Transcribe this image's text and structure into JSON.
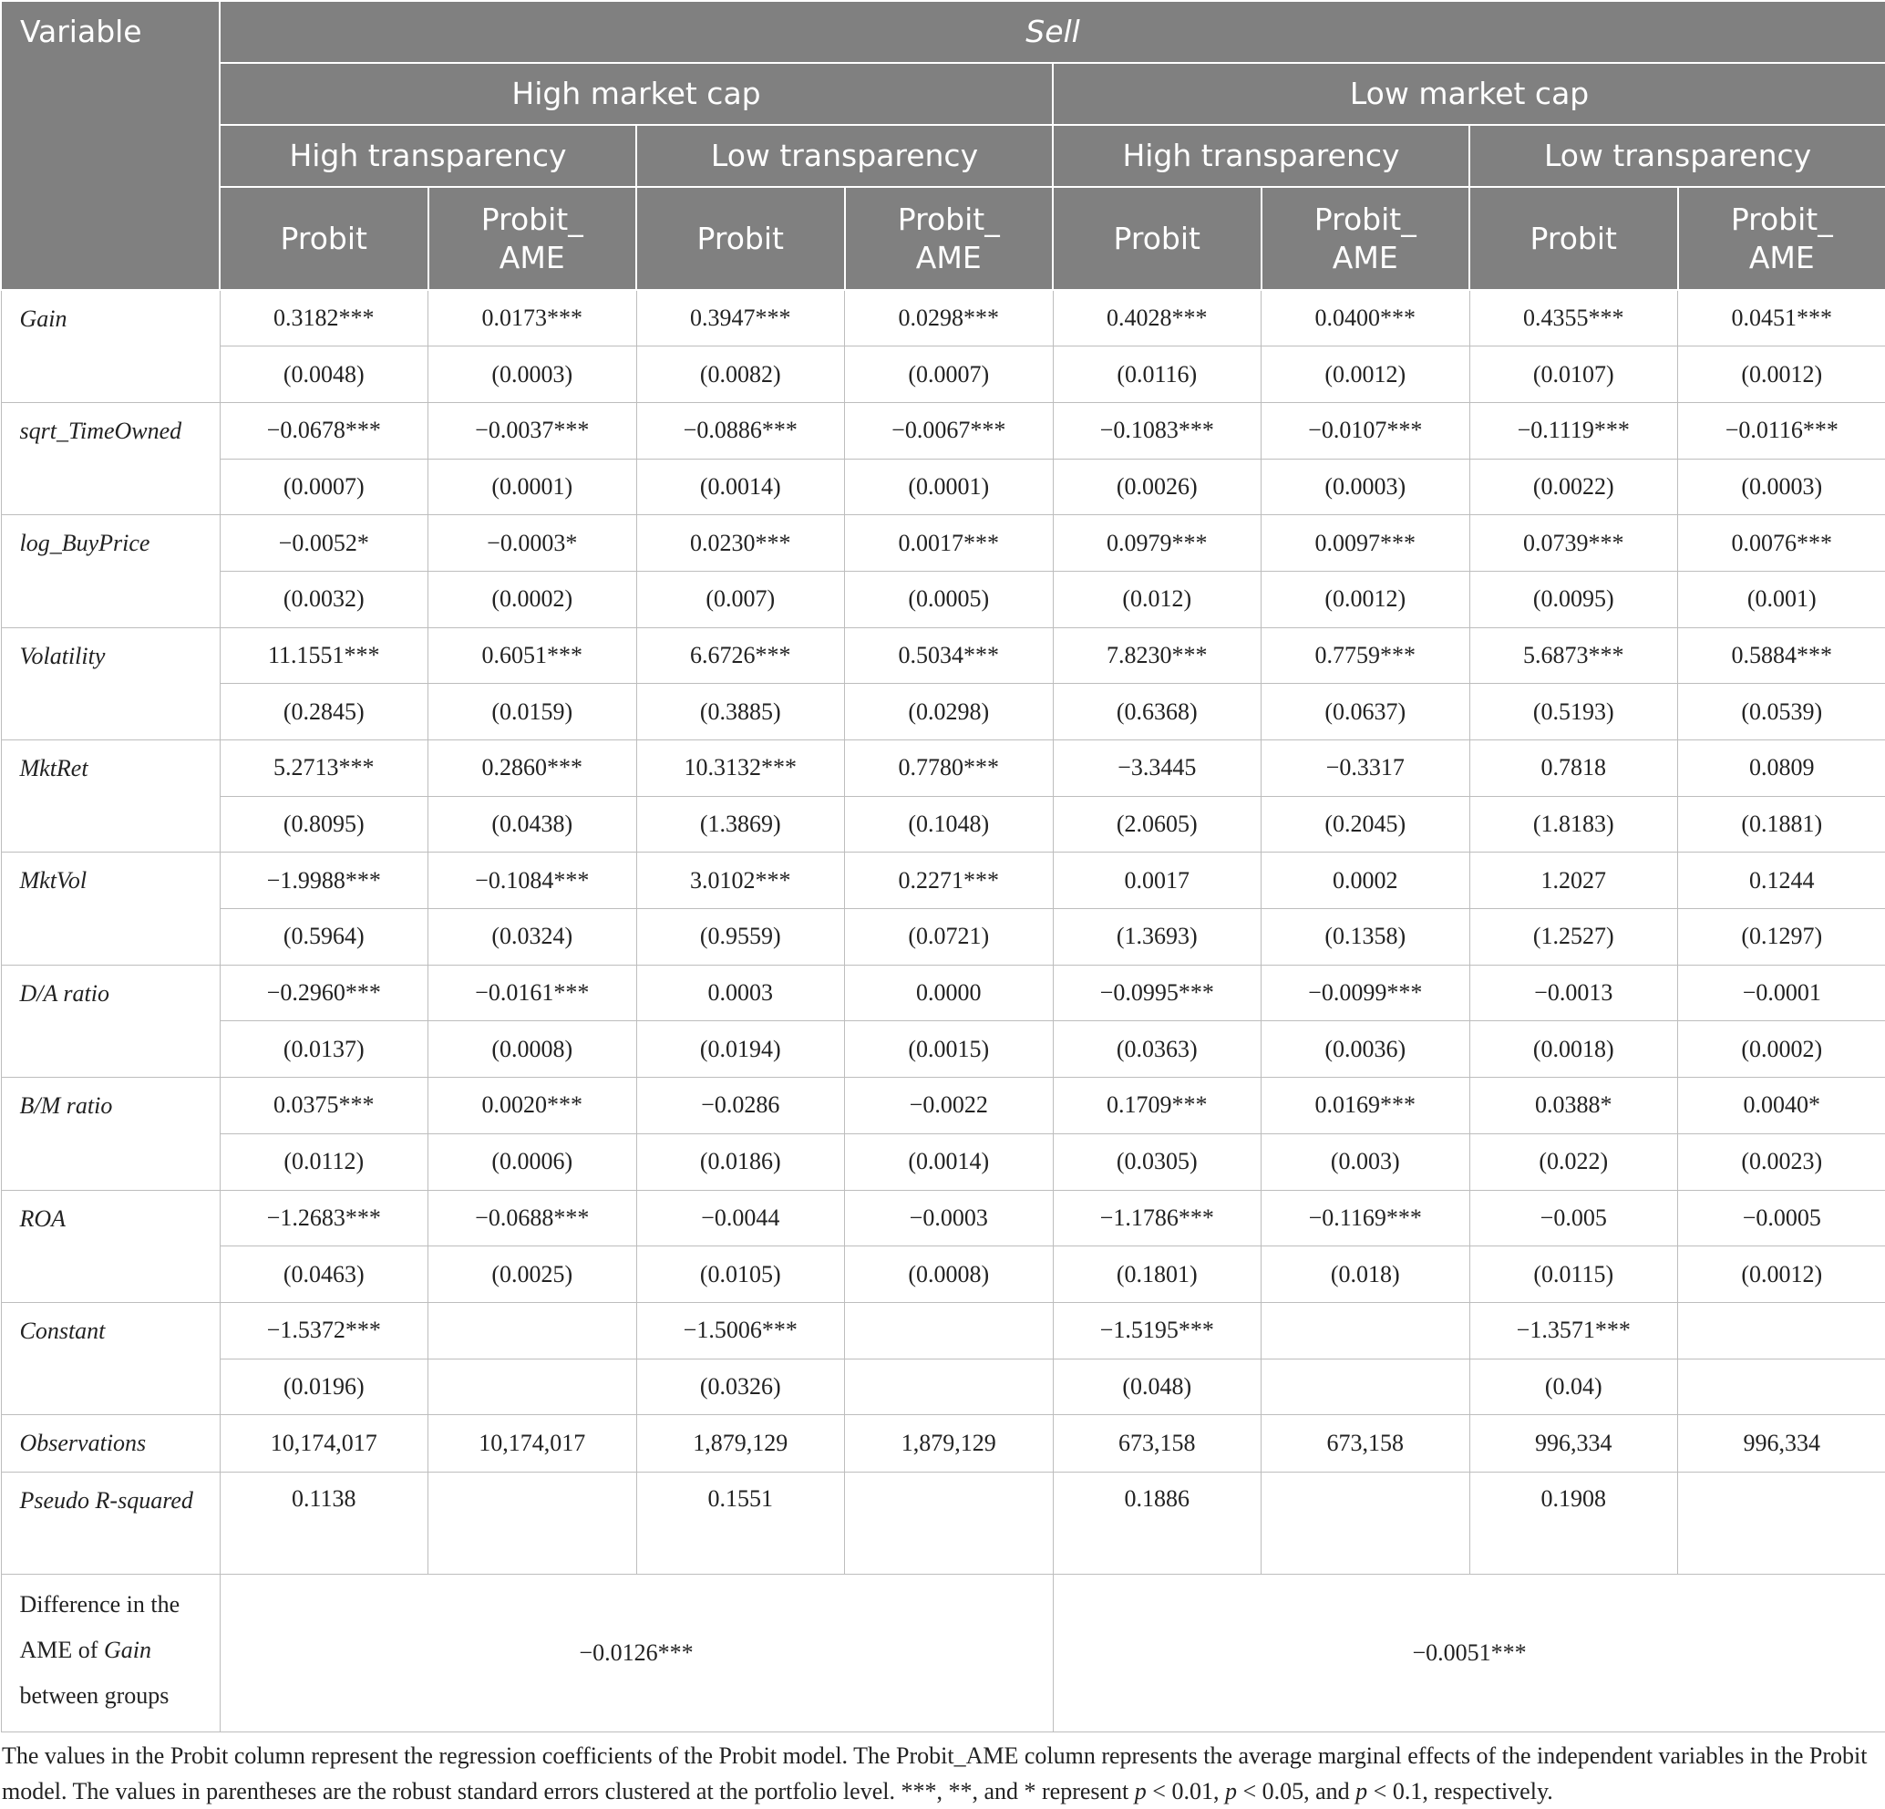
{
  "table": {
    "header": {
      "variable": "Variable",
      "sell": "Sell",
      "groups": [
        "High market cap",
        "Low market cap"
      ],
      "subgroups": [
        "High transparency",
        "Low transparency",
        "High transparency",
        "Low transparency"
      ],
      "models": [
        "Probit",
        "Probit_\nAME",
        "Probit",
        "Probit_\nAME",
        "Probit",
        "Probit_\nAME",
        "Probit",
        "Probit_\nAME"
      ]
    },
    "rows": [
      {
        "label": "Gain",
        "estimate": [
          "0.3182***",
          "0.0173***",
          "0.3947***",
          "0.0298***",
          "0.4028***",
          "0.0400***",
          "0.4355***",
          "0.0451***"
        ],
        "se": [
          "(0.0048)",
          "(0.0003)",
          "(0.0082)",
          "(0.0007)",
          "(0.0116)",
          "(0.0012)",
          "(0.0107)",
          "(0.0012)"
        ]
      },
      {
        "label": "sqrt_TimeOwned",
        "estimate": [
          "−0.0678***",
          "−0.0037***",
          "−0.0886***",
          "−0.0067***",
          "−0.1083***",
          "−0.0107***",
          "−0.1119***",
          "−0.0116***"
        ],
        "se": [
          "(0.0007)",
          "(0.0001)",
          "(0.0014)",
          "(0.0001)",
          "(0.0026)",
          "(0.0003)",
          "(0.0022)",
          "(0.0003)"
        ]
      },
      {
        "label": "log_BuyPrice",
        "estimate": [
          "−0.0052*",
          "−0.0003*",
          "0.0230***",
          "0.0017***",
          "0.0979***",
          "0.0097***",
          "0.0739***",
          "0.0076***"
        ],
        "se": [
          "(0.0032)",
          "(0.0002)",
          "(0.007)",
          "(0.0005)",
          "(0.012)",
          "(0.0012)",
          "(0.0095)",
          "(0.001)"
        ]
      },
      {
        "label": "Volatility",
        "estimate": [
          "11.1551***",
          "0.6051***",
          "6.6726***",
          "0.5034***",
          "7.8230***",
          "0.7759***",
          "5.6873***",
          "0.5884***"
        ],
        "se": [
          "(0.2845)",
          "(0.0159)",
          "(0.3885)",
          "(0.0298)",
          "(0.6368)",
          "(0.0637)",
          "(0.5193)",
          "(0.0539)"
        ]
      },
      {
        "label": "MktRet",
        "estimate": [
          "5.2713***",
          "0.2860***",
          "10.3132***",
          "0.7780***",
          "−3.3445",
          "−0.3317",
          "0.7818",
          "0.0809"
        ],
        "se": [
          "(0.8095)",
          "(0.0438)",
          "(1.3869)",
          "(0.1048)",
          "(2.0605)",
          "(0.2045)",
          "(1.8183)",
          "(0.1881)"
        ]
      },
      {
        "label": "MktVol",
        "estimate": [
          "−1.9988***",
          "−0.1084***",
          "3.0102***",
          "0.2271***",
          "0.0017",
          "0.0002",
          "1.2027",
          "0.1244"
        ],
        "se": [
          "(0.5964)",
          "(0.0324)",
          "(0.9559)",
          "(0.0721)",
          "(1.3693)",
          "(0.1358)",
          "(1.2527)",
          "(0.1297)"
        ]
      },
      {
        "label": "D/A ratio",
        "estimate": [
          "−0.2960***",
          "−0.0161***",
          "0.0003",
          "0.0000",
          "−0.0995***",
          "−0.0099***",
          "−0.0013",
          "−0.0001"
        ],
        "se": [
          "(0.0137)",
          "(0.0008)",
          "(0.0194)",
          "(0.0015)",
          "(0.0363)",
          "(0.0036)",
          "(0.0018)",
          "(0.0002)"
        ]
      },
      {
        "label": "B/M ratio",
        "estimate": [
          "0.0375***",
          "0.0020***",
          "−0.0286",
          "−0.0022",
          "0.1709***",
          "0.0169***",
          "0.0388*",
          "0.0040*"
        ],
        "se": [
          "(0.0112)",
          "(0.0006)",
          "(0.0186)",
          "(0.0014)",
          "(0.0305)",
          "(0.003)",
          "(0.022)",
          "(0.0023)"
        ]
      },
      {
        "label": "ROA",
        "estimate": [
          "−1.2683***",
          "−0.0688***",
          "−0.0044",
          "−0.0003",
          "−1.1786***",
          "−0.1169***",
          "−0.005",
          "−0.0005"
        ],
        "se": [
          "(0.0463)",
          "(0.0025)",
          "(0.0105)",
          "(0.0008)",
          "(0.1801)",
          "(0.018)",
          "(0.0115)",
          "(0.0012)"
        ]
      },
      {
        "label": "Constant",
        "estimate": [
          "−1.5372***",
          null,
          "−1.5006***",
          null,
          "−1.5195***",
          null,
          "−1.3571***",
          null
        ],
        "se": [
          "(0.0196)",
          null,
          "(0.0326)",
          null,
          "(0.048)",
          null,
          "(0.04)",
          null
        ]
      }
    ],
    "observations": {
      "label": "Observations",
      "values": [
        "10,174,017",
        "10,174,017",
        "1,879,129",
        "1,879,129",
        "673,158",
        "673,158",
        "996,334",
        "996,334"
      ]
    },
    "pseudo_r2": {
      "label": "Pseudo R-squared",
      "values": [
        "0.1138",
        null,
        "0.1551",
        null,
        "0.1886",
        null,
        "0.1908",
        null
      ]
    },
    "difference": {
      "label": [
        "Difference in the AME of ",
        "Gain",
        " between groups"
      ],
      "values": [
        "−0.0126***",
        "−0.0051***"
      ]
    }
  },
  "footnote": [
    "The values in the Probit column represent the regression coefficients of the Probit model. The Probit_AME column represents the average marginal effects of the independent variables in the Probit model. The values in parentheses are the robust standard errors clustered at the portfolio level. ***, **, and * represent ",
    "p",
    " < 0.01, ",
    "p",
    " < 0.05, and ",
    "p",
    " < 0.1, respectively."
  ]
}
